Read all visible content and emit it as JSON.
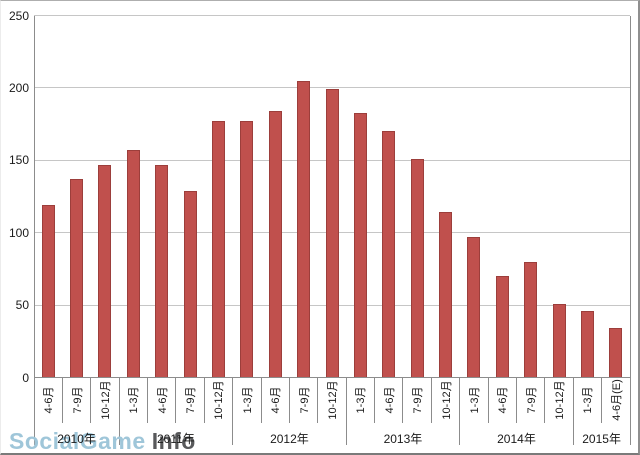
{
  "chart_data": {
    "type": "bar",
    "title": "",
    "xlabel": "",
    "ylabel": "",
    "categories": [
      "4-6月",
      "7-9月",
      "10-12月",
      "1-3月",
      "4-6月",
      "7-9月",
      "10-12月",
      "1-3月",
      "4-6月",
      "7-9月",
      "10-12月",
      "1-3月",
      "4-6月",
      "7-9月",
      "10-12月",
      "1-3月",
      "4-6月",
      "7-9月",
      "10-12月",
      "1-3月",
      "4-6月(E)"
    ],
    "values": [
      119,
      137,
      147,
      157,
      147,
      129,
      177,
      177,
      184,
      205,
      199,
      183,
      170,
      151,
      114,
      97,
      70,
      80,
      51,
      46,
      34
    ],
    "year_groups": [
      {
        "label": "2010年",
        "count": 3
      },
      {
        "label": "2011年",
        "count": 4
      },
      {
        "label": "2012年",
        "count": 4
      },
      {
        "label": "2013年",
        "count": 4
      },
      {
        "label": "2014年",
        "count": 4
      },
      {
        "label": "2015年",
        "count": 2
      }
    ],
    "ylim": [
      0,
      250
    ],
    "yticks": [
      0,
      50,
      100,
      150,
      200,
      250
    ],
    "grid": true,
    "legend_position": "none",
    "bar_color": "#C0504D",
    "bar_border_color": "#9C3E3B",
    "grid_color": "#C6C6C6",
    "axis_color": "#8C8C8C",
    "label_color": "#1A1A1A"
  },
  "watermark": {
    "text_light": "SocialGame",
    "text_dark": "Info",
    "color_light": "#9FC6D9",
    "color_dark": "#58595B"
  }
}
